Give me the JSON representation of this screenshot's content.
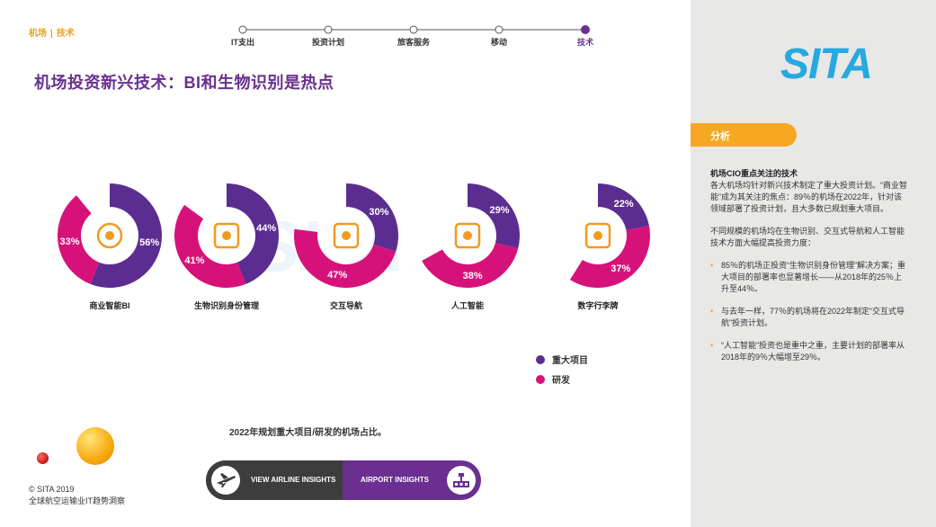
{
  "breadcrumb": {
    "section": "机场",
    "separator": "|",
    "current": "技术"
  },
  "stepper": {
    "steps": [
      "IT支出",
      "投资计划",
      "旅客服务",
      "移动",
      "技术"
    ],
    "active_index": 4
  },
  "title": "机场投资新兴技术：BI和生物识别是热点",
  "colors": {
    "major": "#5c2d91",
    "rnd": "#d6127a",
    "accent": "#e8a21c",
    "brand": "#26a9e0"
  },
  "chart_data": {
    "type": "donut",
    "categories": [
      "商业智能BI",
      "生物识别身份管理",
      "交互导航",
      "人工智能",
      "数字行李牌"
    ],
    "series": [
      {
        "name": "重大项目",
        "values": [
          56,
          44,
          30,
          29,
          22
        ]
      },
      {
        "name": "研发",
        "values": [
          33,
          41,
          47,
          38,
          37
        ]
      }
    ],
    "labels_major": [
      "56%",
      "44%",
      "30%",
      "29%",
      "22%"
    ],
    "labels_rnd": [
      "33%",
      "41%",
      "47%",
      "38%",
      "37%"
    ],
    "icons": [
      "brain-icon",
      "face-id-icon",
      "phone-map-icon",
      "ai-circuit-icon",
      "rfid-tag-icon"
    ]
  },
  "legend": {
    "major": "重大项目",
    "rnd": "研发"
  },
  "caption": "2022年规划重大项目/研发的机场占比。",
  "nav": {
    "left": "VIEW AIRLINE INSIGHTS",
    "right": "AIRPORT INSIGHTS"
  },
  "footer": {
    "copyright": "© SITA 2019",
    "subtitle": "全球航空运输业IT趋势洞察"
  },
  "sidebar": {
    "logo": "SITA",
    "tab": "分析",
    "heading": "机场CIO重点关注的技术",
    "para1": "各大机场均针对新兴技术制定了重大投资计划。“商业智能”成为其关注的焦点：89％的机场在2022年，针对该领域部署了投资计划，且大多数已规划重大项目。",
    "para2": "不同规模的机场均在生物识别、交互式导航和人工智能技术方面大幅提高投资力度：",
    "bullets": [
      "85％的机场正投资“生物识别身份管理”解决方案；重大项目的部署率也显著增长——从2018年的25％上升至44％。",
      "与去年一样，77％的机场将在2022年制定“交互式导航”投资计划。",
      "“人工智能”投资也是重中之重，主要计划的部署率从2018年的9％大幅增至29％。"
    ],
    "bullet_char": "•"
  }
}
